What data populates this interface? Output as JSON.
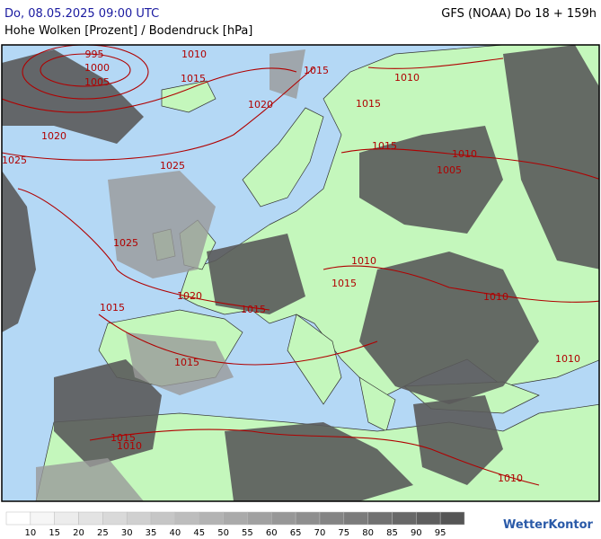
{
  "header": {
    "datetime": "Do, 08.05.2025 09:00 UTC",
    "model": "GFS (NOAA) Do 18 + 159h",
    "subtitle": "Hohe Wolken [Prozent] / Bodendruck [hPa]"
  },
  "isobar_labels": [
    "995",
    "1000",
    "1005",
    "1010",
    "1015",
    "1015",
    "1010",
    "1015",
    "1020",
    "1020",
    "1015",
    "1010",
    "1005",
    "1025",
    "1025",
    "1025",
    "1010",
    "1015",
    "1020",
    "1015",
    "1015",
    "1010",
    "1015",
    "1010",
    "1015",
    "1010",
    "1010"
  ],
  "legend": {
    "labels": [
      10,
      15,
      20,
      25,
      30,
      35,
      40,
      45,
      50,
      55,
      60,
      65,
      70,
      75,
      80,
      85,
      90,
      95
    ]
  },
  "logo": "WetterKontor"
}
